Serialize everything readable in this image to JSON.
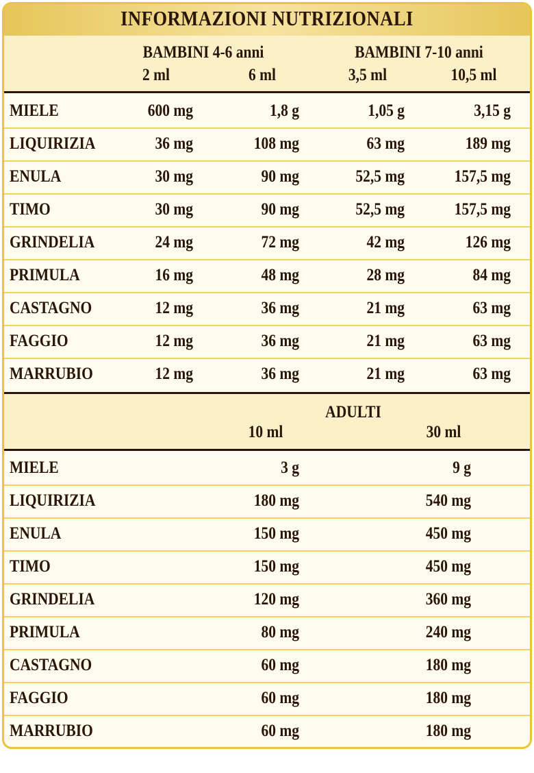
{
  "title": "INFORMAZIONI NUTRIZIONALI",
  "children": {
    "groups": [
      "BAMBINI 4-6 anni",
      "BAMBINI 7-10 anni"
    ],
    "doses": [
      "2 ml",
      "6 ml",
      "3,5 ml",
      "10,5 ml"
    ],
    "rows": [
      [
        "MIELE",
        "600 mg",
        "1,8 g",
        "1,05 g",
        "3,15 g"
      ],
      [
        "LIQUIRIZIA",
        "36 mg",
        "108 mg",
        "63 mg",
        "189 mg"
      ],
      [
        "ENULA",
        "30 mg",
        "90 mg",
        "52,5 mg",
        "157,5 mg"
      ],
      [
        "TIMO",
        "30 mg",
        "90 mg",
        "52,5 mg",
        "157,5 mg"
      ],
      [
        "GRINDELIA",
        "24 mg",
        "72 mg",
        "42 mg",
        "126 mg"
      ],
      [
        "PRIMULA",
        "16 mg",
        "48 mg",
        "28 mg",
        "84 mg"
      ],
      [
        "CASTAGNO",
        "12 mg",
        "36 mg",
        "21 mg",
        "63 mg"
      ],
      [
        "FAGGIO",
        "12 mg",
        "36 mg",
        "21 mg",
        "63 mg"
      ],
      [
        "MARRUBIO",
        "12 mg",
        "36 mg",
        "21 mg",
        "63 mg"
      ]
    ]
  },
  "adults": {
    "group": "ADULTI",
    "doses": [
      "10 ml",
      "30 ml"
    ],
    "rows": [
      [
        "MIELE",
        "3 g",
        "9 g"
      ],
      [
        "LIQUIRIZIA",
        "180 mg",
        "540 mg"
      ],
      [
        "ENULA",
        "150 mg",
        "450 mg"
      ],
      [
        "TIMO",
        "150 mg",
        "450 mg"
      ],
      [
        "GRINDELIA",
        "120 mg",
        "360 mg"
      ],
      [
        "PRIMULA",
        "80 mg",
        "240 mg"
      ],
      [
        "CASTAGNO",
        "60 mg",
        "180 mg"
      ],
      [
        "FAGGIO",
        "60 mg",
        "180 mg"
      ],
      [
        "MARRUBIO",
        "60 mg",
        "180 mg"
      ]
    ]
  }
}
